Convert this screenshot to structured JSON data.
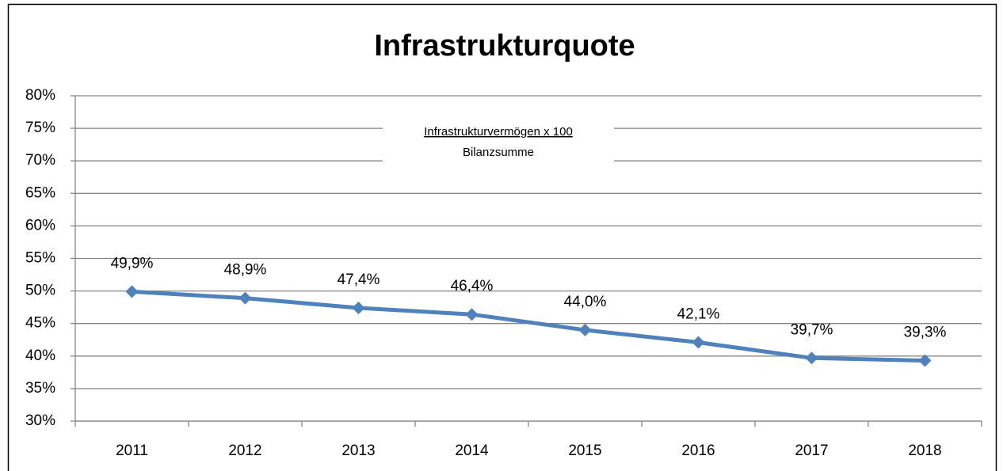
{
  "chart_data": {
    "type": "line",
    "title": "Infrastrukturquote",
    "annotation": {
      "numerator": "Infrastrukturvermögen x 100",
      "denominator": "Bilanzsumme"
    },
    "categories": [
      "2011",
      "2012",
      "2013",
      "2014",
      "2015",
      "2016",
      "2017",
      "2018"
    ],
    "series": [
      {
        "name": "Infrastrukturquote",
        "color": "#4f81bd",
        "values": [
          49.9,
          48.9,
          47.4,
          46.4,
          44.0,
          42.1,
          39.7,
          39.3
        ],
        "value_labels": [
          "49,9%",
          "48,9%",
          "47,4%",
          "46,4%",
          "44,0%",
          "42,1%",
          "39,7%",
          "39,3%"
        ]
      }
    ],
    "ylim": [
      30,
      80
    ],
    "yticks": [
      {
        "value": 30,
        "label": "30%"
      },
      {
        "value": 35,
        "label": "35%"
      },
      {
        "value": 40,
        "label": "40%"
      },
      {
        "value": 45,
        "label": "45%"
      },
      {
        "value": 50,
        "label": "50%"
      },
      {
        "value": 55,
        "label": "55%"
      },
      {
        "value": 60,
        "label": "60%"
      },
      {
        "value": 65,
        "label": "65%"
      },
      {
        "value": 70,
        "label": "70%"
      },
      {
        "value": 75,
        "label": "75%"
      },
      {
        "value": 80,
        "label": "80%"
      }
    ],
    "grid": true
  }
}
